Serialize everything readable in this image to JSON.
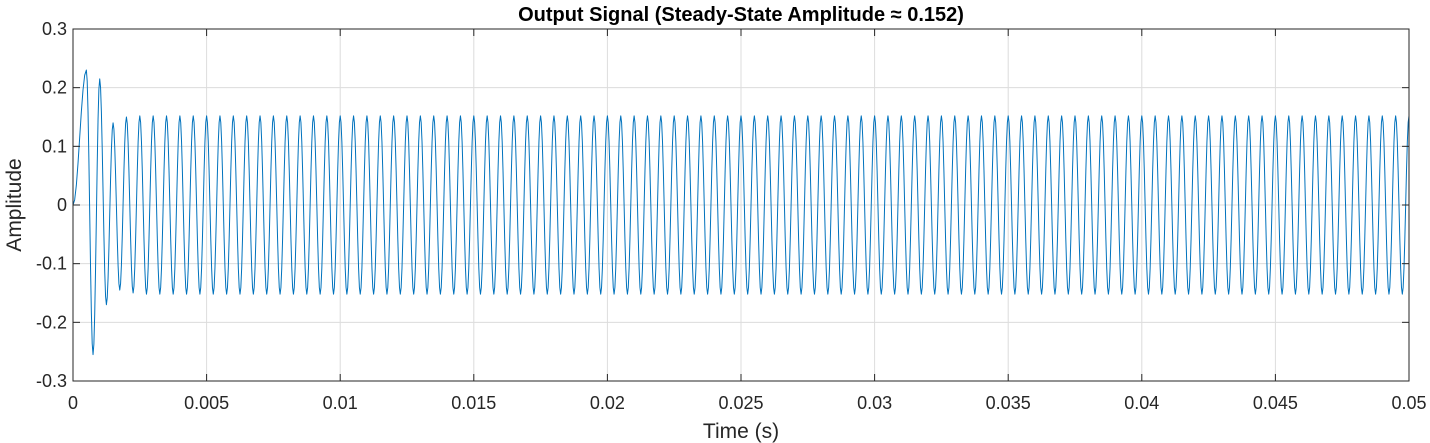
{
  "chart_data": {
    "type": "line",
    "title": "Output Signal (Steady-State Amplitude ≈ 0.152)",
    "xlabel": "Time (s)",
    "ylabel": "Amplitude",
    "xlim": [
      0,
      0.05
    ],
    "ylim": [
      -0.3,
      0.3
    ],
    "xticks": [
      0,
      0.005,
      0.01,
      0.015,
      0.02,
      0.025,
      0.03,
      0.035,
      0.04,
      0.045,
      0.05
    ],
    "xtick_labels": [
      "0",
      "0.005",
      "0.01",
      "0.015",
      "0.02",
      "0.025",
      "0.03",
      "0.035",
      "0.04",
      "0.045",
      "0.05"
    ],
    "yticks": [
      -0.3,
      -0.2,
      -0.1,
      0,
      0.1,
      0.2,
      0.3
    ],
    "ytick_labels": [
      "-0.3",
      "-0.2",
      "-0.1",
      "0",
      "0.1",
      "0.2",
      "0.3"
    ],
    "grid": true,
    "series": [
      {
        "color": "#0072BD",
        "x": [
          0,
          0.0005,
          0.00075,
          0.001,
          0.00125,
          0.0015,
          0.00175,
          0.002,
          0.00225,
          0.0025,
          0.00275,
          0.003,
          0.00325,
          0.0035,
          0.00375,
          0.004,
          0.00425,
          0.0045,
          0.00475,
          0.005,
          0.00525,
          0.0055,
          0.00575,
          0.006,
          0.00625,
          0.0065,
          0.00675,
          0.007,
          0.00725,
          0.0075,
          0.00775,
          0.008,
          0.00825,
          0.0085,
          0.00875,
          0.009,
          0.00925,
          0.0095,
          0.00975,
          0.01,
          0.01025,
          0.0105,
          0.01075,
          0.011,
          0.01125,
          0.0115,
          0.01175,
          0.012,
          0.01225,
          0.0125,
          0.01275,
          0.013,
          0.01325,
          0.0135,
          0.01375,
          0.014,
          0.01425,
          0.0145,
          0.01475,
          0.015,
          0.01525,
          0.0155,
          0.01575,
          0.016,
          0.01625,
          0.0165,
          0.01675,
          0.017,
          0.01725,
          0.0175,
          0.01775,
          0.018,
          0.01825,
          0.0185,
          0.01875,
          0.019,
          0.01925,
          0.0195,
          0.01975,
          0.02,
          0.02025,
          0.0205,
          0.02075,
          0.021,
          0.02125,
          0.0215,
          0.02175,
          0.022,
          0.02225,
          0.0225,
          0.02275,
          0.023,
          0.02325,
          0.0235,
          0.02375,
          0.024,
          0.02425,
          0.0245,
          0.02475,
          0.025,
          0.02525,
          0.0255,
          0.02575,
          0.026,
          0.02625,
          0.0265,
          0.02675,
          0.027,
          0.02725,
          0.0275,
          0.02775,
          0.028,
          0.02825,
          0.0285,
          0.02875,
          0.029,
          0.02925,
          0.0295,
          0.02975,
          0.03,
          0.03025,
          0.0305,
          0.03075,
          0.031,
          0.03125,
          0.0315,
          0.03175,
          0.032,
          0.03225,
          0.0325,
          0.03275,
          0.033,
          0.03325,
          0.0335,
          0.03375,
          0.034,
          0.03425,
          0.0345,
          0.03475,
          0.035,
          0.03525,
          0.0355,
          0.03575,
          0.036,
          0.03625,
          0.0365,
          0.03675,
          0.037,
          0.03725,
          0.0375,
          0.03775,
          0.038,
          0.03825,
          0.0385,
          0.03875,
          0.039,
          0.03925,
          0.0395,
          0.03975,
          0.04,
          0.04025,
          0.0405,
          0.04075,
          0.041,
          0.04125,
          0.0415,
          0.04175,
          0.042,
          0.04225,
          0.0425,
          0.04275,
          0.043,
          0.04325,
          0.0435,
          0.04375,
          0.044,
          0.04425,
          0.0445,
          0.04475,
          0.045,
          0.04525,
          0.0455,
          0.04575,
          0.046,
          0.04625,
          0.0465,
          0.04675,
          0.047,
          0.04725,
          0.0475,
          0.04775,
          0.048,
          0.04825,
          0.0485,
          0.04875,
          0.049,
          0.04925,
          0.0495,
          0.04975,
          0.05
        ],
        "y": [
          0,
          0.23,
          -0.255,
          0.215,
          -0.17,
          0.14,
          -0.145,
          0.15,
          -0.15,
          0.152,
          -0.152,
          0.152,
          -0.152,
          0.152,
          -0.152,
          0.152,
          -0.152,
          0.152,
          -0.152,
          0.152,
          -0.152,
          0.152,
          -0.152,
          0.152,
          -0.152,
          0.152,
          -0.152,
          0.152,
          -0.152,
          0.152,
          -0.152,
          0.152,
          -0.152,
          0.152,
          -0.152,
          0.152,
          -0.152,
          0.152,
          -0.152,
          0.152,
          -0.152,
          0.152,
          -0.152,
          0.152,
          -0.152,
          0.152,
          -0.152,
          0.152,
          -0.152,
          0.152,
          -0.152,
          0.152,
          -0.152,
          0.152,
          -0.152,
          0.152,
          -0.152,
          0.152,
          -0.152,
          0.152,
          -0.152,
          0.152,
          -0.152,
          0.152,
          -0.152,
          0.152,
          -0.152,
          0.152,
          -0.152,
          0.152,
          -0.152,
          0.152,
          -0.152,
          0.152,
          -0.152,
          0.152,
          -0.152,
          0.152,
          -0.152,
          0.152,
          -0.152,
          0.152,
          -0.152,
          0.152,
          -0.152,
          0.152,
          -0.152,
          0.152,
          -0.152,
          0.152,
          -0.152,
          0.152,
          -0.152,
          0.152,
          -0.152,
          0.152,
          -0.152,
          0.152,
          -0.152,
          0.152,
          -0.152,
          0.152,
          -0.152,
          0.152,
          -0.152,
          0.152,
          -0.152,
          0.152,
          -0.152,
          0.152,
          -0.152,
          0.152,
          -0.152,
          0.152,
          -0.152,
          0.152,
          -0.152,
          0.152,
          -0.152,
          0.152,
          -0.152,
          0.152,
          -0.152,
          0.152,
          -0.152,
          0.152,
          -0.152,
          0.152,
          -0.152,
          0.152,
          -0.152,
          0.152,
          -0.152,
          0.152,
          -0.152,
          0.152,
          -0.152,
          0.152,
          -0.152,
          0.152,
          -0.152,
          0.152,
          -0.152,
          0.152,
          -0.152,
          0.152,
          -0.152,
          0.152,
          -0.152,
          0.152,
          -0.152,
          0.152,
          -0.152,
          0.152,
          -0.152,
          0.152,
          -0.152,
          0.152,
          -0.152,
          0.152,
          -0.152,
          0.152,
          -0.152,
          0.152,
          -0.152,
          0.152,
          -0.152,
          0.152,
          -0.152,
          0.152,
          -0.152,
          0.152,
          -0.152,
          0.152,
          -0.152,
          0.152,
          -0.152,
          0.152,
          -0.152,
          0.152,
          -0.152,
          0.152,
          -0.152,
          0.152,
          -0.152,
          0.152,
          -0.152,
          0.152,
          -0.152,
          0.152,
          -0.152,
          0.152,
          -0.152,
          0.152,
          -0.152,
          0.152,
          -0.152,
          0.152,
          -0.152,
          0.152
        ]
      }
    ]
  }
}
